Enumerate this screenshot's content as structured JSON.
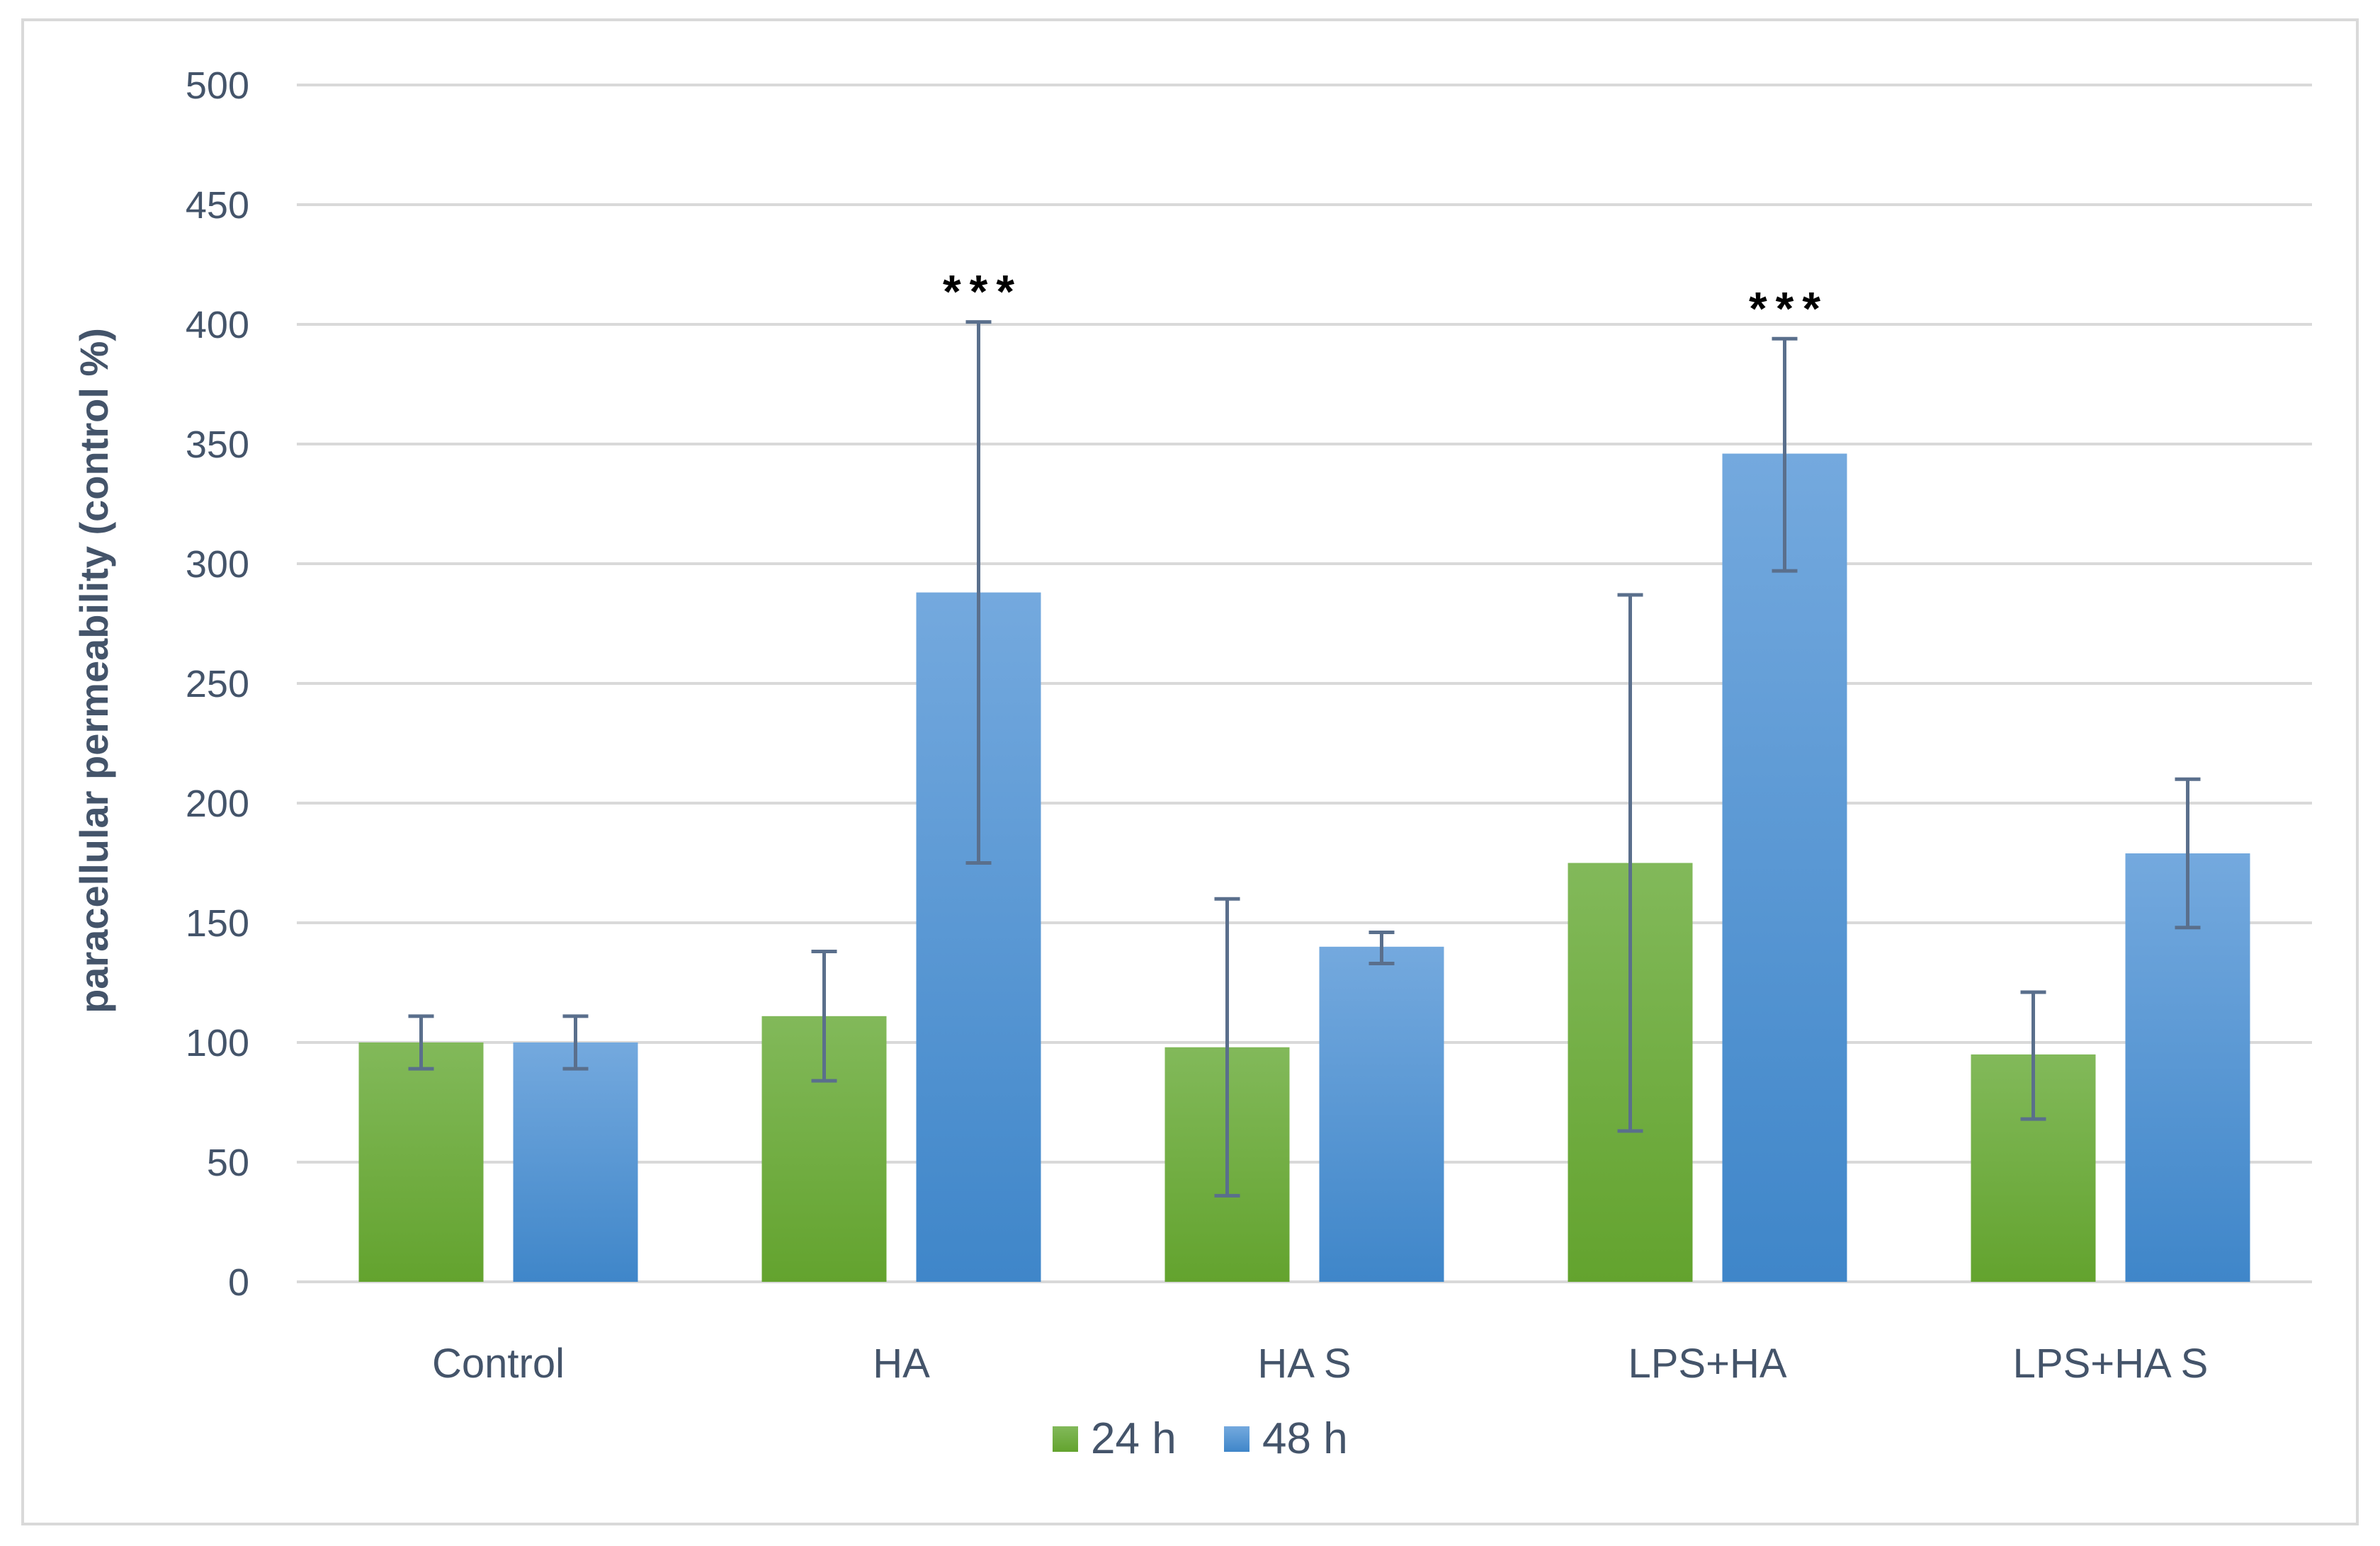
{
  "chart_data": {
    "type": "bar",
    "title": "",
    "xlabel": "",
    "ylabel": "paracellular permeability (control %)",
    "ylim": [
      0,
      500
    ],
    "yticks": [
      0,
      50,
      100,
      150,
      200,
      250,
      300,
      350,
      400,
      450,
      500
    ],
    "categories": [
      "Control",
      "HA",
      "HA S",
      "LPS+HA",
      "LPS+HA S"
    ],
    "series": [
      {
        "name": "24 h",
        "color": "#6aad3a",
        "values": [
          100,
          111,
          98,
          175,
          95
        ],
        "error_low": [
          89,
          84,
          36,
          63,
          68
        ],
        "error_high": [
          111,
          138,
          160,
          287,
          121
        ]
      },
      {
        "name": "48 h",
        "color": "#4a90d6",
        "values": [
          100,
          288,
          140,
          346,
          179
        ],
        "error_low": [
          89,
          175,
          133,
          297,
          148
        ],
        "error_high": [
          111,
          401,
          146,
          394,
          210
        ]
      }
    ],
    "annotations": [
      {
        "category": "HA",
        "series": "48 h",
        "text": "***"
      },
      {
        "category": "LPS+HA",
        "series": "48 h",
        "text": "***"
      }
    ],
    "grid": true,
    "legend": "bottom-center"
  }
}
